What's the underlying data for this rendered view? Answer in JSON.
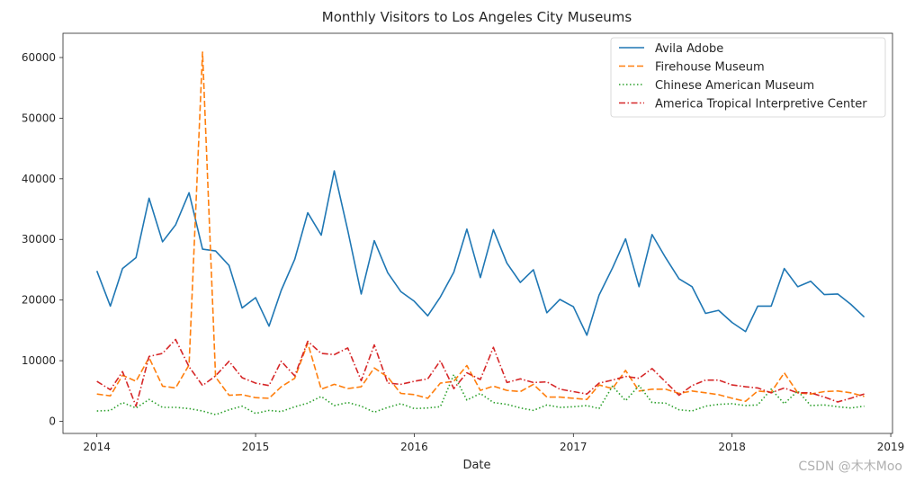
{
  "chart_data": {
    "type": "line",
    "title": "Monthly Visitors to Los Angeles City Museums",
    "xlabel": "Date",
    "ylabel": "",
    "xlim": [
      "2013-10-15",
      "2019-01-05"
    ],
    "ylim": [
      -2000,
      64000
    ],
    "x_ticks": [
      "2014",
      "2015",
      "2016",
      "2017",
      "2018",
      "2019"
    ],
    "y_ticks": [
      0,
      10000,
      20000,
      30000,
      40000,
      50000,
      60000
    ],
    "legend_position": "top-right",
    "start_month": "2014-01",
    "series": [
      {
        "name": "Avila Adobe",
        "color": "#1f77b4",
        "style": "solid",
        "values": [
          24800,
          19000,
          25200,
          27000,
          36800,
          29600,
          32400,
          37700,
          28400,
          28100,
          25700,
          18700,
          20400,
          15700,
          21600,
          26700,
          34400,
          30700,
          41300,
          31500,
          21000,
          29800,
          24500,
          21400,
          19800,
          17400,
          20500,
          24600,
          31700,
          23700,
          31600,
          26100,
          22900,
          25000,
          17900,
          20100,
          18900,
          14200,
          20800,
          25300,
          30100,
          22200,
          30800,
          27000,
          23500,
          22200,
          17800,
          18300,
          16300,
          14800,
          19000,
          19000,
          25200,
          22200,
          23100,
          20900,
          21000,
          19300,
          17200
        ]
      },
      {
        "name": "Firehouse Museum",
        "color": "#ff7f0e",
        "style": "dashed",
        "values": [
          4500,
          4200,
          7600,
          6600,
          10500,
          5800,
          5500,
          9300,
          60900,
          7300,
          4300,
          4400,
          3900,
          3800,
          5700,
          7100,
          12900,
          5300,
          6100,
          5400,
          5700,
          8800,
          7300,
          4600,
          4400,
          3800,
          6300,
          6600,
          9200,
          5100,
          5800,
          5100,
          4900,
          6100,
          4000,
          4000,
          3800,
          3600,
          6000,
          5400,
          8400,
          5000,
          5300,
          5300,
          4600,
          5000,
          4700,
          4400,
          3800,
          3300,
          5000,
          4800,
          8000,
          4700,
          4500,
          4900,
          5000,
          4700,
          4100
        ]
      },
      {
        "name": "Chinese American Museum",
        "color": "#2ca02c",
        "style": "dotted",
        "values": [
          1700,
          1800,
          3100,
          2200,
          3600,
          2300,
          2300,
          2100,
          1700,
          1100,
          1900,
          2500,
          1300,
          1800,
          1600,
          2400,
          3000,
          4100,
          2600,
          3100,
          2500,
          1500,
          2300,
          2900,
          2100,
          2200,
          2400,
          7700,
          3500,
          4600,
          3100,
          2800,
          2200,
          1800,
          2700,
          2300,
          2400,
          2600,
          2100,
          5800,
          3400,
          5900,
          3100,
          3000,
          1900,
          1700,
          2500,
          2800,
          2900,
          2600,
          2700,
          5300,
          2900,
          5000,
          2600,
          2700,
          2400,
          2200,
          2500
        ]
      },
      {
        "name": "America Tropical Interpretive Center",
        "color": "#d62728",
        "style": "dashdot",
        "values": [
          6600,
          5200,
          8200,
          2500,
          10700,
          11200,
          13500,
          9000,
          5900,
          7500,
          9900,
          7200,
          6300,
          5900,
          9900,
          7500,
          13200,
          11200,
          11000,
          12100,
          6700,
          12600,
          6300,
          6100,
          6600,
          7000,
          10000,
          5400,
          8000,
          6900,
          12200,
          6400,
          7000,
          6400,
          6500,
          5300,
          4900,
          4500,
          6300,
          6800,
          7400,
          7100,
          8700,
          6500,
          4300,
          5900,
          6800,
          6800,
          6000,
          5700,
          5500,
          4700,
          5500,
          4700,
          4700,
          4000,
          3200,
          3800,
          4500
        ]
      }
    ]
  },
  "watermark": "CSDN @木木Moo"
}
